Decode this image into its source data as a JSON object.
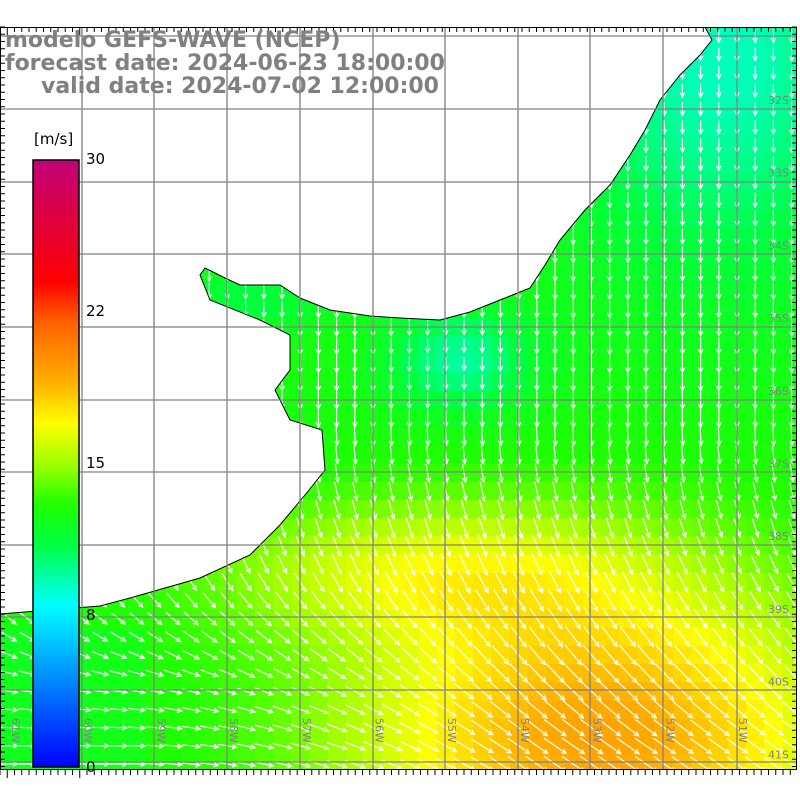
{
  "title": {
    "line1": "modelo GEFS-WAVE (NCEP)",
    "line2": "forecast date: 2024-06-23 18:00:00",
    "line3": "valid date: 2024-07-02 12:00:00"
  },
  "colorbar": {
    "unit": "[m/s]",
    "ticks": [
      "30",
      "22",
      "15",
      "8",
      "0"
    ],
    "range": [
      0,
      30
    ],
    "stops": [
      {
        "v": 0,
        "c": "#0000ff"
      },
      {
        "v": 4,
        "c": "#0080ff"
      },
      {
        "v": 8,
        "c": "#00ffff"
      },
      {
        "v": 11,
        "c": "#00ff40"
      },
      {
        "v": 13,
        "c": "#20ff00"
      },
      {
        "v": 15,
        "c": "#a0ff00"
      },
      {
        "v": 17,
        "c": "#ffff00"
      },
      {
        "v": 19,
        "c": "#ffb000"
      },
      {
        "v": 22,
        "c": "#ff6000"
      },
      {
        "v": 24,
        "c": "#ff0000"
      },
      {
        "v": 30,
        "c": "#c0007a"
      }
    ]
  },
  "lat_labels": [
    "32S",
    "33S",
    "34S",
    "35S",
    "36S",
    "37S",
    "38S",
    "39S",
    "40S",
    "41S"
  ],
  "lon_labels": [
    "61W",
    "60W",
    "59W",
    "58W",
    "57W",
    "56W",
    "55W",
    "54W",
    "53W",
    "52W",
    "51W"
  ],
  "colors": {
    "grid": "#808080",
    "land": "#ffffff",
    "arrow": "#ffffff",
    "coast": "#000000"
  }
}
